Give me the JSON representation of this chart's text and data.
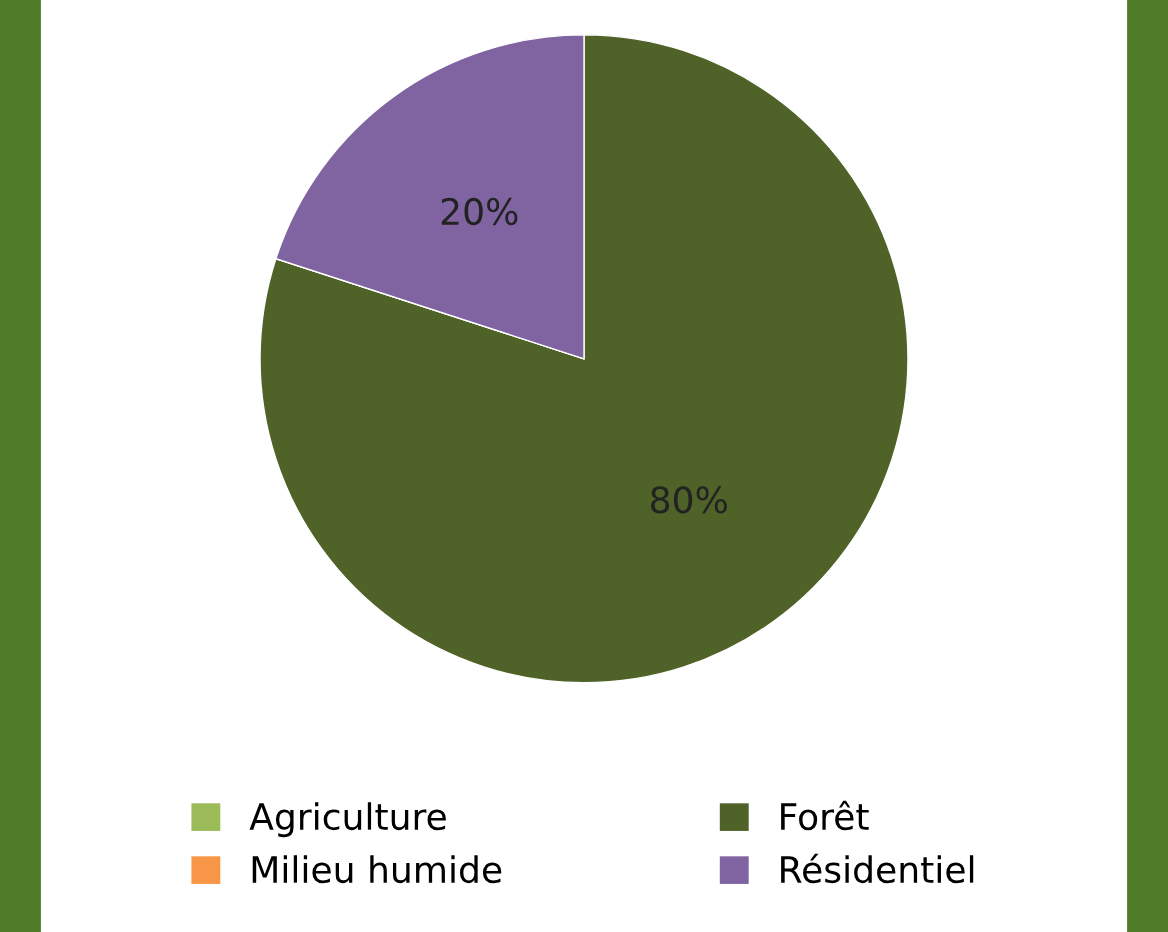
{
  "chart_data": {
    "type": "pie",
    "categories": [
      "Agriculture",
      "Forêt",
      "Milieu humide",
      "Résidentiel"
    ],
    "values": [
      0,
      80,
      0,
      20
    ],
    "colors": [
      "#9bbb59",
      "#4f6228",
      "#f79646",
      "#8064a2"
    ],
    "value_labels": [
      null,
      "80%",
      null,
      "20%"
    ],
    "legend": "bottom"
  }
}
